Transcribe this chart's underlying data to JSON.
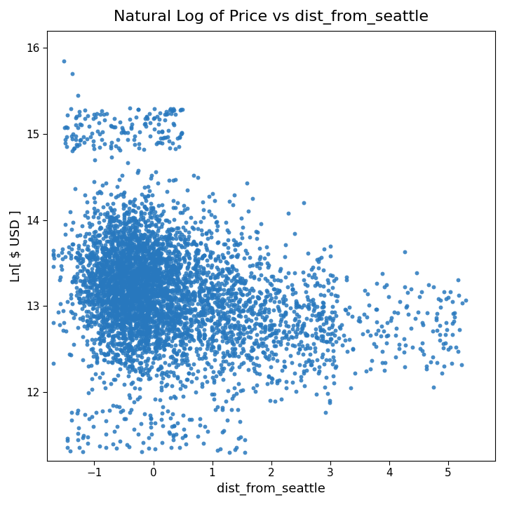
{
  "title": "Natural Log of Price vs dist_from_seattle",
  "xlabel": "dist_from_seattle",
  "ylabel": "Ln[ $ USD ]",
  "xlim": [
    -1.8,
    5.8
  ],
  "ylim": [
    11.2,
    16.2
  ],
  "xticks": [
    -1,
    0,
    1,
    2,
    3,
    4,
    5
  ],
  "yticks": [
    12,
    13,
    14,
    15,
    16
  ],
  "dot_color": "#2878be",
  "dot_size": 18,
  "dot_alpha": 0.85,
  "background_color": "#ffffff",
  "title_fontsize": 16,
  "label_fontsize": 13,
  "n_points": 5000,
  "seed": 42
}
